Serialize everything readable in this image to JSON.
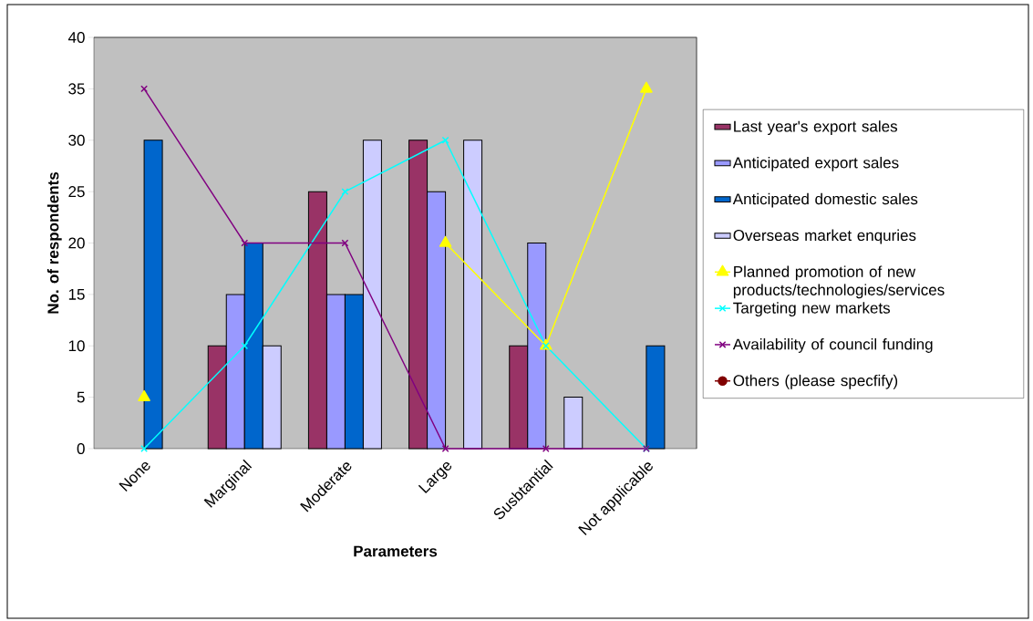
{
  "chart_data": {
    "type": "bar",
    "xlabel": "Parameters",
    "ylabel": "No. of respondents",
    "categories": [
      "None",
      "Marginal",
      "Moderate",
      "Large",
      "Susbtantial",
      "Not applicable"
    ],
    "series": [
      {
        "name": "Last year's export sales",
        "color": "#993366",
        "values": [
          null,
          10,
          25,
          30,
          10,
          null
        ]
      },
      {
        "name": "Anticipated export sales",
        "color": "#9999ff",
        "values": [
          null,
          15,
          15,
          25,
          20,
          null
        ]
      },
      {
        "name": "Anticipated domestic sales",
        "color": "#0066cc",
        "values": [
          30,
          20,
          15,
          null,
          null,
          10
        ]
      },
      {
        "name": "Overseas market enquries",
        "color": "#ccccff",
        "values": [
          null,
          10,
          30,
          30,
          5,
          null
        ]
      },
      {
        "name": "Planned promotion of new products/technologies/services",
        "type": "line",
        "marker": "triangle",
        "color": "#ffff00",
        "values": [
          5,
          null,
          null,
          20,
          10,
          35
        ]
      },
      {
        "name": "Targeting new markets",
        "type": "line",
        "marker": "cross",
        "color": "#00ffff",
        "values": [
          0,
          10,
          25,
          30,
          10,
          0
        ]
      },
      {
        "name": "Availability of council funding",
        "type": "line",
        "marker": "cross",
        "color": "#800080",
        "values": [
          35,
          20,
          20,
          0,
          0,
          0
        ]
      },
      {
        "name": "Others (please specfify)",
        "type": "line",
        "marker": "circle",
        "color": "#800000",
        "values": [
          null,
          null,
          null,
          null,
          null,
          null
        ]
      }
    ],
    "ylim": [
      0,
      40
    ],
    "yticks": [
      0,
      5,
      10,
      15,
      20,
      25,
      30,
      35,
      40
    ],
    "legend": "right"
  }
}
